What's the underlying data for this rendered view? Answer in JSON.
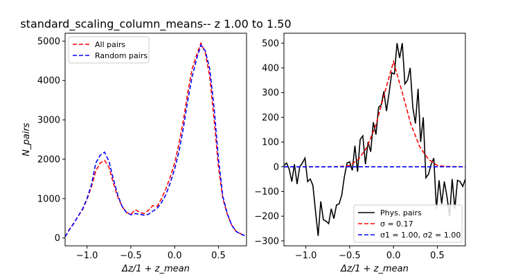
{
  "figure_title": "standard_scaling_column_means-- z 1.00 to 1.50",
  "chart_data": [
    {
      "type": "line",
      "title": "standard_scaling_column_means-- z 1.00 to 1.50",
      "xlabel": "Δz/1 + z_mean",
      "ylabel": "N_pairs",
      "xlim": [
        -1.25,
        0.82
      ],
      "ylim": [
        -200,
        5200
      ],
      "xticks": [
        -1.0,
        -0.5,
        0.0,
        0.5
      ],
      "xtick_labels": [
        "−1.0",
        "−0.5",
        "0.0",
        "0.5"
      ],
      "yticks": [
        0,
        1000,
        2000,
        3000,
        4000,
        5000
      ],
      "ytick_labels": [
        "0",
        "1000",
        "2000",
        "3000",
        "4000",
        "5000"
      ],
      "legend_position": "upper-left",
      "series": [
        {
          "name": "All pairs",
          "color": "#ff0000",
          "style": "dashed",
          "x": [
            -1.25,
            -1.2,
            -1.15,
            -1.1,
            -1.05,
            -1.0,
            -0.95,
            -0.9,
            -0.85,
            -0.8,
            -0.75,
            -0.7,
            -0.65,
            -0.6,
            -0.55,
            -0.5,
            -0.45,
            -0.4,
            -0.35,
            -0.3,
            -0.25,
            -0.2,
            -0.15,
            -0.1,
            -0.05,
            0.0,
            0.05,
            0.1,
            0.15,
            0.2,
            0.25,
            0.3,
            0.35,
            0.4,
            0.45,
            0.5,
            0.55,
            0.6,
            0.65,
            0.7,
            0.75,
            0.8
          ],
          "values": [
            30,
            220,
            380,
            560,
            720,
            980,
            1300,
            1700,
            1900,
            1970,
            1800,
            1400,
            1050,
            800,
            650,
            600,
            720,
            650,
            620,
            700,
            820,
            800,
            1000,
            1250,
            1550,
            1900,
            2400,
            3000,
            3700,
            4300,
            4650,
            4950,
            4700,
            4100,
            3000,
            1800,
            1000,
            600,
            330,
            170,
            110,
            60
          ]
        },
        {
          "name": "Random pairs",
          "color": "#0000ff",
          "style": "dashed",
          "x": [
            -1.25,
            -1.2,
            -1.15,
            -1.1,
            -1.05,
            -1.0,
            -0.95,
            -0.9,
            -0.85,
            -0.8,
            -0.75,
            -0.7,
            -0.65,
            -0.6,
            -0.55,
            -0.5,
            -0.45,
            -0.4,
            -0.35,
            -0.3,
            -0.25,
            -0.2,
            -0.15,
            -0.1,
            -0.05,
            0.0,
            0.05,
            0.1,
            0.15,
            0.2,
            0.25,
            0.3,
            0.35,
            0.4,
            0.45,
            0.5,
            0.55,
            0.6,
            0.65,
            0.7,
            0.75,
            0.8
          ],
          "values": [
            30,
            210,
            370,
            560,
            740,
            1000,
            1350,
            1900,
            2100,
            2180,
            1950,
            1500,
            1100,
            800,
            650,
            590,
            620,
            600,
            580,
            600,
            680,
            750,
            900,
            1100,
            1400,
            1750,
            2200,
            2800,
            3500,
            4100,
            4550,
            4900,
            4750,
            4300,
            3300,
            2000,
            1050,
            620,
            330,
            170,
            100,
            60
          ]
        }
      ]
    },
    {
      "type": "line",
      "title": "",
      "xlabel": "Δz/1 + z_mean",
      "ylabel": "",
      "xlim": [
        -1.25,
        0.82
      ],
      "ylim": [
        -320,
        540
      ],
      "xticks": [
        -1.0,
        -0.5,
        0.0,
        0.5
      ],
      "xtick_labels": [
        "−1.0",
        "−0.5",
        "0.0",
        "0.5"
      ],
      "yticks": [
        -300,
        -200,
        -100,
        0,
        100,
        200,
        300,
        400,
        500
      ],
      "ytick_labels": [
        "−300",
        "−200",
        "−100",
        "0",
        "100",
        "200",
        "300",
        "400",
        "500"
      ],
      "legend_position": "lower-right",
      "series": [
        {
          "name": "Phys. pairs",
          "color": "#000000",
          "style": "solid",
          "x": [
            -1.25,
            -1.22,
            -1.19,
            -1.16,
            -1.13,
            -1.1,
            -1.07,
            -1.04,
            -1.01,
            -0.98,
            -0.95,
            -0.92,
            -0.89,
            -0.86,
            -0.83,
            -0.8,
            -0.77,
            -0.74,
            -0.71,
            -0.68,
            -0.65,
            -0.62,
            -0.59,
            -0.56,
            -0.53,
            -0.5,
            -0.47,
            -0.44,
            -0.41,
            -0.38,
            -0.35,
            -0.32,
            -0.29,
            -0.26,
            -0.23,
            -0.2,
            -0.17,
            -0.14,
            -0.11,
            -0.08,
            -0.05,
            -0.02,
            0.01,
            0.04,
            0.07,
            0.1,
            0.13,
            0.16,
            0.19,
            0.22,
            0.25,
            0.28,
            0.31,
            0.34,
            0.37,
            0.4,
            0.43,
            0.46,
            0.49,
            0.52,
            0.55,
            0.58,
            0.61,
            0.64,
            0.67,
            0.7,
            0.73,
            0.76,
            0.79,
            0.82
          ],
          "values": [
            5,
            15,
            -10,
            -60,
            10,
            -70,
            0,
            15,
            35,
            -60,
            -50,
            -75,
            -180,
            -280,
            -140,
            -215,
            -220,
            -230,
            -170,
            -210,
            -155,
            -150,
            -115,
            -40,
            15,
            20,
            -15,
            85,
            -20,
            110,
            125,
            10,
            100,
            60,
            180,
            130,
            240,
            250,
            305,
            225,
            300,
            380,
            375,
            500,
            440,
            500,
            335,
            350,
            400,
            240,
            175,
            315,
            100,
            200,
            -45,
            -30,
            10,
            35,
            -170,
            -55,
            -150,
            -60,
            -120,
            -200,
            -50,
            -170,
            -55,
            -60,
            -80,
            -50
          ]
        },
        {
          "name": "σ = 0.17",
          "color": "#ff0000",
          "style": "dashed",
          "x": [
            -1.25,
            -1.0,
            -0.75,
            -0.6,
            -0.5,
            -0.4,
            -0.3,
            -0.2,
            -0.1,
            0.0,
            0.1,
            0.2,
            0.3,
            0.4,
            0.5,
            0.6,
            0.82
          ],
          "values": [
            0,
            0,
            0,
            1,
            5,
            30,
            80,
            170,
            300,
            425,
            300,
            170,
            80,
            30,
            5,
            1,
            0
          ]
        },
        {
          "name": "σ1 = 1.00, σ2 = 1.00",
          "color": "#0000ff",
          "style": "dashed",
          "x": [
            -1.25,
            0.82
          ],
          "values": [
            0,
            0
          ]
        }
      ]
    }
  ],
  "legend_left": [
    {
      "label": "All pairs",
      "color": "#ff0000",
      "style": "dashed"
    },
    {
      "label": "Random pairs",
      "color": "#0000ff",
      "style": "dashed"
    }
  ],
  "legend_right": [
    {
      "label": "Phys. pairs",
      "color": "#000000",
      "style": "solid"
    },
    {
      "label": "σ = 0.17",
      "color": "#ff0000",
      "style": "dashed"
    },
    {
      "label": "σ1 = 1.00, σ2 = 1.00",
      "color": "#0000ff",
      "style": "dashed"
    }
  ]
}
